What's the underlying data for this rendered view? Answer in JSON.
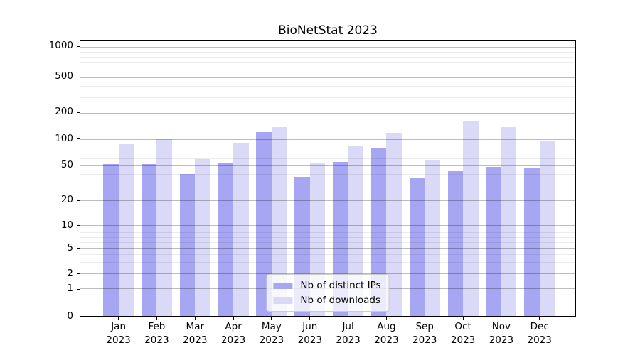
{
  "title": "BioNetStat 2023",
  "chart_data": {
    "type": "bar",
    "title": "BioNetStat 2023",
    "categories": [
      "Jan 2023",
      "Feb 2023",
      "Mar 2023",
      "Apr 2023",
      "May 2023",
      "Jun 2023",
      "Jul 2023",
      "Aug 2023",
      "Sep 2023",
      "Oct 2023",
      "Nov 2023",
      "Dec 2023"
    ],
    "series": [
      {
        "name": "Nb of distinct IPs",
        "color": "#a6a6f2",
        "values": [
          52,
          52,
          40,
          54,
          121,
          37,
          55,
          80,
          36,
          43,
          48,
          47
        ]
      },
      {
        "name": "Nb of downloads",
        "color": "#dadaf8",
        "values": [
          87,
          100,
          59,
          90,
          136,
          54,
          84,
          118,
          58,
          160,
          136,
          94
        ]
      }
    ],
    "xlabel": "",
    "ylabel": "",
    "y_scale": "log-like (0,1,2,5,10,20,50,100,200,500,1000)",
    "y_tick_labels": [
      "0",
      "1",
      "2",
      "5",
      "10",
      "20",
      "50",
      "100",
      "200",
      "500",
      "1000"
    ],
    "y_ticks": [
      0,
      1,
      2,
      5,
      10,
      20,
      50,
      100,
      200,
      500,
      1000
    ],
    "y_minor_ticks": [
      3,
      4,
      6,
      7,
      8,
      9,
      30,
      40,
      60,
      70,
      80,
      90,
      300,
      400,
      600,
      700,
      800,
      900
    ],
    "ylim": [
      0,
      1150
    ],
    "grid": true,
    "legend_position": "lower center",
    "legend_labels": [
      "Nb of distinct IPs",
      "Nb of downloads"
    ]
  },
  "colors": {
    "bar_distinct_ips": "#a6a6f2",
    "bar_downloads": "#dadaf8",
    "major_grid": "rgba(0,0,0,0.26)",
    "minor_grid": "rgba(0,0,0,0.08)",
    "axis": "#000000",
    "legend_border": "#cccccc"
  }
}
